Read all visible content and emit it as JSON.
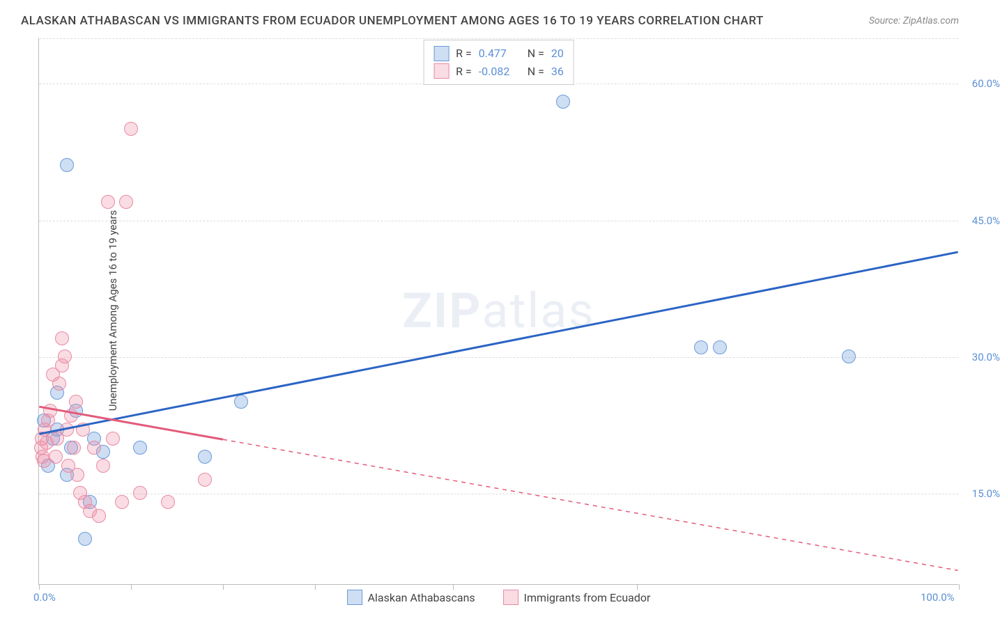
{
  "title": "ALASKAN ATHABASCAN VS IMMIGRANTS FROM ECUADOR UNEMPLOYMENT AMONG AGES 16 TO 19 YEARS CORRELATION CHART",
  "source": "Source: ZipAtlas.com",
  "ylabel": "Unemployment Among Ages 16 to 19 years",
  "watermark_a": "ZIP",
  "watermark_b": "atlas",
  "chart": {
    "type": "scatter",
    "xlim": [
      0,
      100
    ],
    "ylim": [
      5,
      65
    ],
    "x_ticks": [
      0,
      10,
      20,
      30,
      45,
      65,
      100
    ],
    "y_gridlines": [
      15,
      30,
      45,
      60,
      65
    ],
    "y_tick_labels": {
      "15": "15.0%",
      "30": "30.0%",
      "45": "45.0%",
      "60": "60.0%"
    },
    "x_tick_labels": {
      "0": "0.0%",
      "100": "100.0%"
    },
    "colors": {
      "blue_fill": "rgba(115,160,220,0.35)",
      "blue_stroke": "#6a9bd8",
      "pink_fill": "rgba(240,140,165,0.30)",
      "pink_stroke": "#e88aa2",
      "blue_line": "#2b64c4",
      "pink_line": "#e35a7a",
      "grid": "#dddddd",
      "axis": "#bbbbbb",
      "label_blue": "#5b8fd6",
      "text": "#444444"
    },
    "marker_radius": 10,
    "series": [
      {
        "name": "Alaskan Athabascans",
        "color_key": "blue",
        "R": "0.477",
        "N": "20",
        "trend": {
          "x1": 0,
          "y1": 21.5,
          "x2": 100,
          "y2": 41.5,
          "solid_until_x": 100
        },
        "points": [
          [
            0.5,
            23
          ],
          [
            1,
            18
          ],
          [
            1.5,
            21
          ],
          [
            2,
            22
          ],
          [
            2,
            26
          ],
          [
            3,
            51
          ],
          [
            3,
            17
          ],
          [
            3.5,
            20
          ],
          [
            4,
            24
          ],
          [
            5,
            10
          ],
          [
            5.5,
            14
          ],
          [
            6,
            21
          ],
          [
            7,
            19.5
          ],
          [
            11,
            20
          ],
          [
            18,
            19
          ],
          [
            22,
            25
          ],
          [
            57,
            58
          ],
          [
            72,
            31
          ],
          [
            74,
            31
          ],
          [
            88,
            30
          ]
        ]
      },
      {
        "name": "Immigrants from Ecuador",
        "color_key": "pink",
        "R": "-0.082",
        "N": "36",
        "trend": {
          "x1": 0,
          "y1": 24.5,
          "x2": 100,
          "y2": 6.5,
          "solid_until_x": 20
        },
        "points": [
          [
            0.2,
            20
          ],
          [
            0.3,
            21
          ],
          [
            0.4,
            19
          ],
          [
            0.5,
            18.5
          ],
          [
            0.6,
            22
          ],
          [
            0.8,
            20.5
          ],
          [
            1,
            23
          ],
          [
            1.2,
            24
          ],
          [
            1.5,
            28
          ],
          [
            1.8,
            19
          ],
          [
            2,
            21
          ],
          [
            2.2,
            27
          ],
          [
            2.5,
            29
          ],
          [
            2.8,
            30
          ],
          [
            2.5,
            32
          ],
          [
            3,
            22
          ],
          [
            3.2,
            18
          ],
          [
            3.5,
            23.5
          ],
          [
            3.8,
            20
          ],
          [
            4,
            25
          ],
          [
            4.2,
            17
          ],
          [
            4.5,
            15
          ],
          [
            4.8,
            22
          ],
          [
            5,
            14
          ],
          [
            5.5,
            13
          ],
          [
            6,
            20
          ],
          [
            6.5,
            12.5
          ],
          [
            7,
            18
          ],
          [
            7.5,
            47
          ],
          [
            8,
            21
          ],
          [
            9,
            14
          ],
          [
            9.5,
            47
          ],
          [
            10,
            55
          ],
          [
            11,
            15
          ],
          [
            14,
            14
          ],
          [
            18,
            16.5
          ]
        ]
      }
    ]
  },
  "legend_top": {
    "r_label": "R =",
    "n_label": "N ="
  }
}
